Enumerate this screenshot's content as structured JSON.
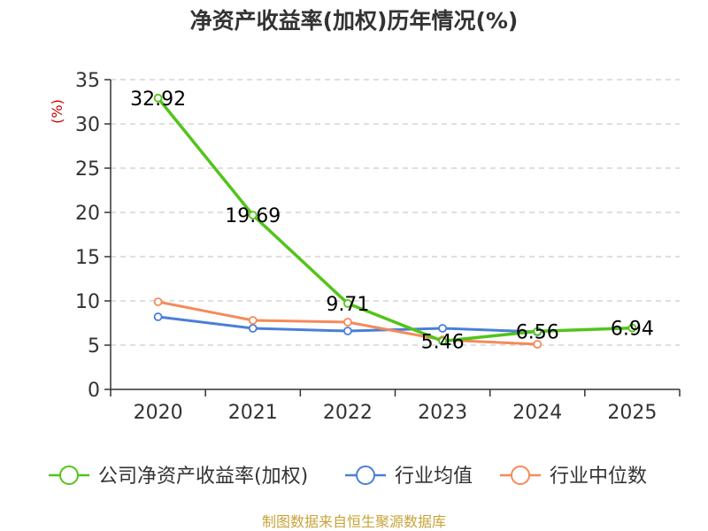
{
  "chart_data": {
    "type": "line",
    "title": "净资产收益率(加权)历年情况(%)",
    "ylabel": "(%)",
    "xlabel": "",
    "categories": [
      "2020",
      "2021",
      "2022",
      "2023",
      "2024",
      "2025"
    ],
    "ylim": [
      0,
      35
    ],
    "yticks": [
      0,
      5,
      10,
      15,
      20,
      25,
      30,
      35
    ],
    "grid": true,
    "legend_position": "bottom",
    "series": [
      {
        "name": "公司净资产收益率(加权)",
        "color": "#52c41a",
        "values": [
          32.92,
          19.69,
          9.71,
          5.46,
          6.56,
          6.94
        ],
        "labels": [
          "32.92",
          "19.69",
          "9.71",
          "5.46",
          "6.56",
          "6.94"
        ]
      },
      {
        "name": "行业均值",
        "color": "#4a7fd8",
        "values": [
          8.2,
          6.9,
          6.6,
          6.9,
          6.5,
          null
        ]
      },
      {
        "name": "行业中位数",
        "color": "#f58a5a",
        "values": [
          9.9,
          7.8,
          7.6,
          5.6,
          5.1,
          null
        ]
      }
    ],
    "source": "制图数据来自恒生聚源数据库"
  }
}
